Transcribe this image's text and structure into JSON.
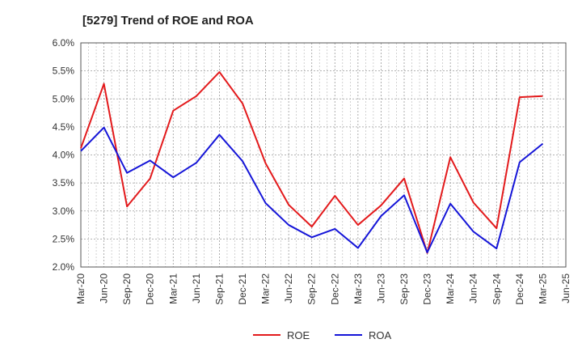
{
  "chart_data": {
    "type": "line",
    "title": "[5279]  Trend of ROE and ROA",
    "xlabel": "",
    "ylabel": "",
    "ylim": [
      2.0,
      6.0
    ],
    "yticks": [
      "2.0%",
      "2.5%",
      "3.0%",
      "3.5%",
      "4.0%",
      "4.5%",
      "5.0%",
      "5.5%",
      "6.0%"
    ],
    "categories": [
      "Mar-20",
      "Jun-20",
      "Sep-20",
      "Dec-20",
      "Mar-21",
      "Jun-21",
      "Sep-21",
      "Dec-21",
      "Mar-22",
      "Jun-22",
      "Sep-22",
      "Dec-22",
      "Mar-23",
      "Jun-23",
      "Sep-23",
      "Dec-23",
      "Mar-24",
      "Jun-24",
      "Sep-24",
      "Dec-24",
      "Mar-25",
      "Jun-25"
    ],
    "grid": true,
    "legend_position": "bottom",
    "series": [
      {
        "name": "ROE",
        "color": "#e31a1c",
        "values": [
          4.12,
          5.27,
          3.08,
          3.58,
          4.79,
          5.05,
          5.48,
          4.92,
          3.85,
          3.11,
          2.72,
          3.27,
          2.75,
          3.1,
          3.58,
          2.25,
          3.96,
          3.15,
          2.69,
          5.03,
          5.05,
          null
        ]
      },
      {
        "name": "ROA",
        "color": "#1515d8",
        "values": [
          4.07,
          4.49,
          3.68,
          3.9,
          3.6,
          3.86,
          4.36,
          3.89,
          3.14,
          2.75,
          2.53,
          2.68,
          2.34,
          2.91,
          3.28,
          2.26,
          3.13,
          2.63,
          2.33,
          3.87,
          4.2,
          null
        ]
      }
    ]
  }
}
